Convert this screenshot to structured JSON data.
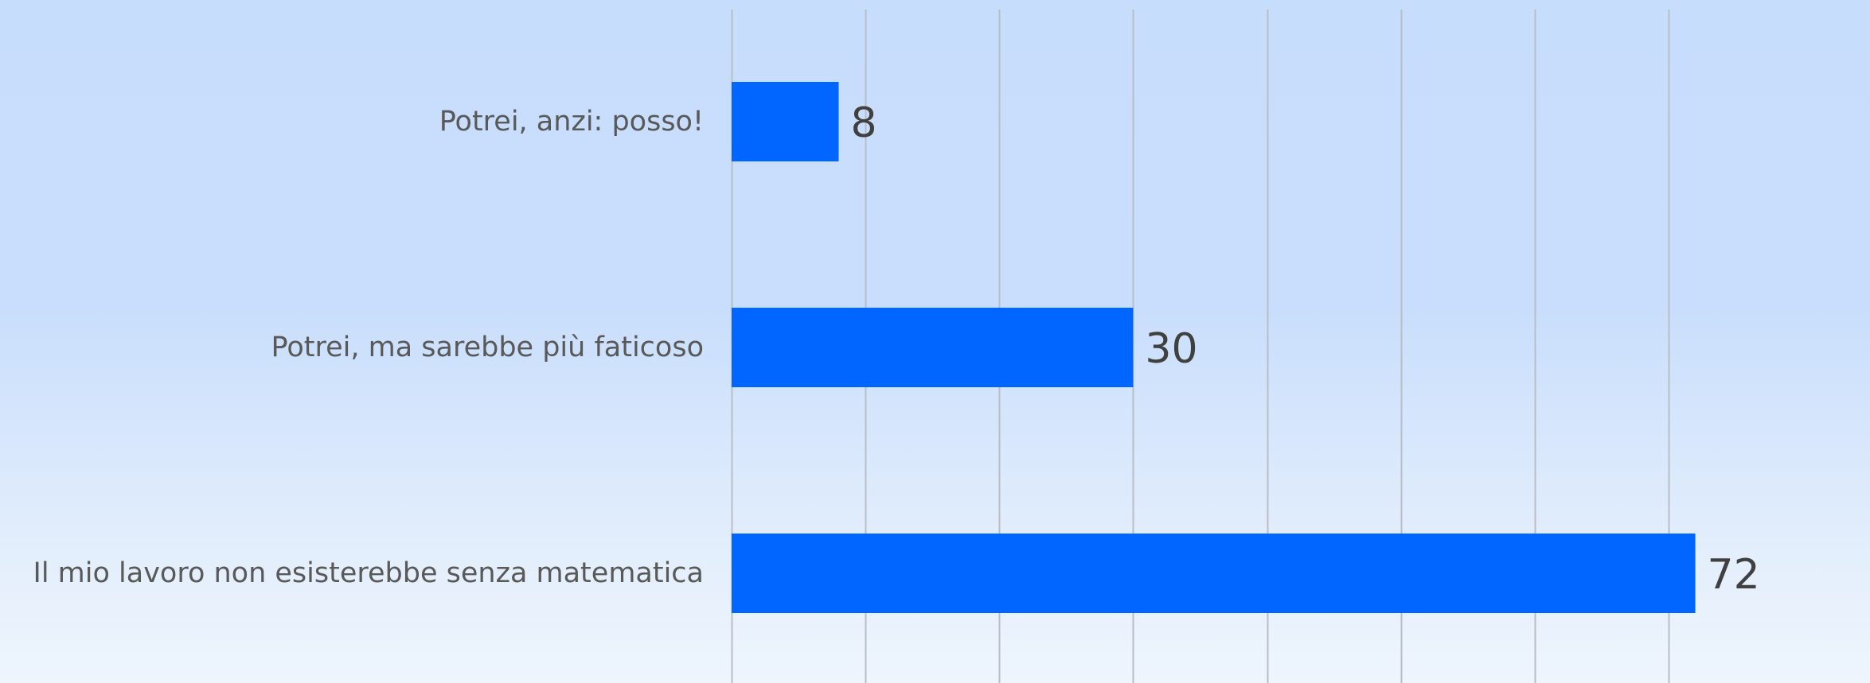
{
  "chart_data": {
    "type": "bar",
    "orientation": "horizontal",
    "categories": [
      "Potrei, anzi: posso!",
      "Potrei, ma sarebbe più faticoso",
      "Il mio lavoro non esisterebbe senza matematica"
    ],
    "values": [
      8,
      30,
      72
    ],
    "xlim": [
      0,
      75
    ],
    "grid": "vertical",
    "legend": "none",
    "bar_color": "#0066ff"
  }
}
